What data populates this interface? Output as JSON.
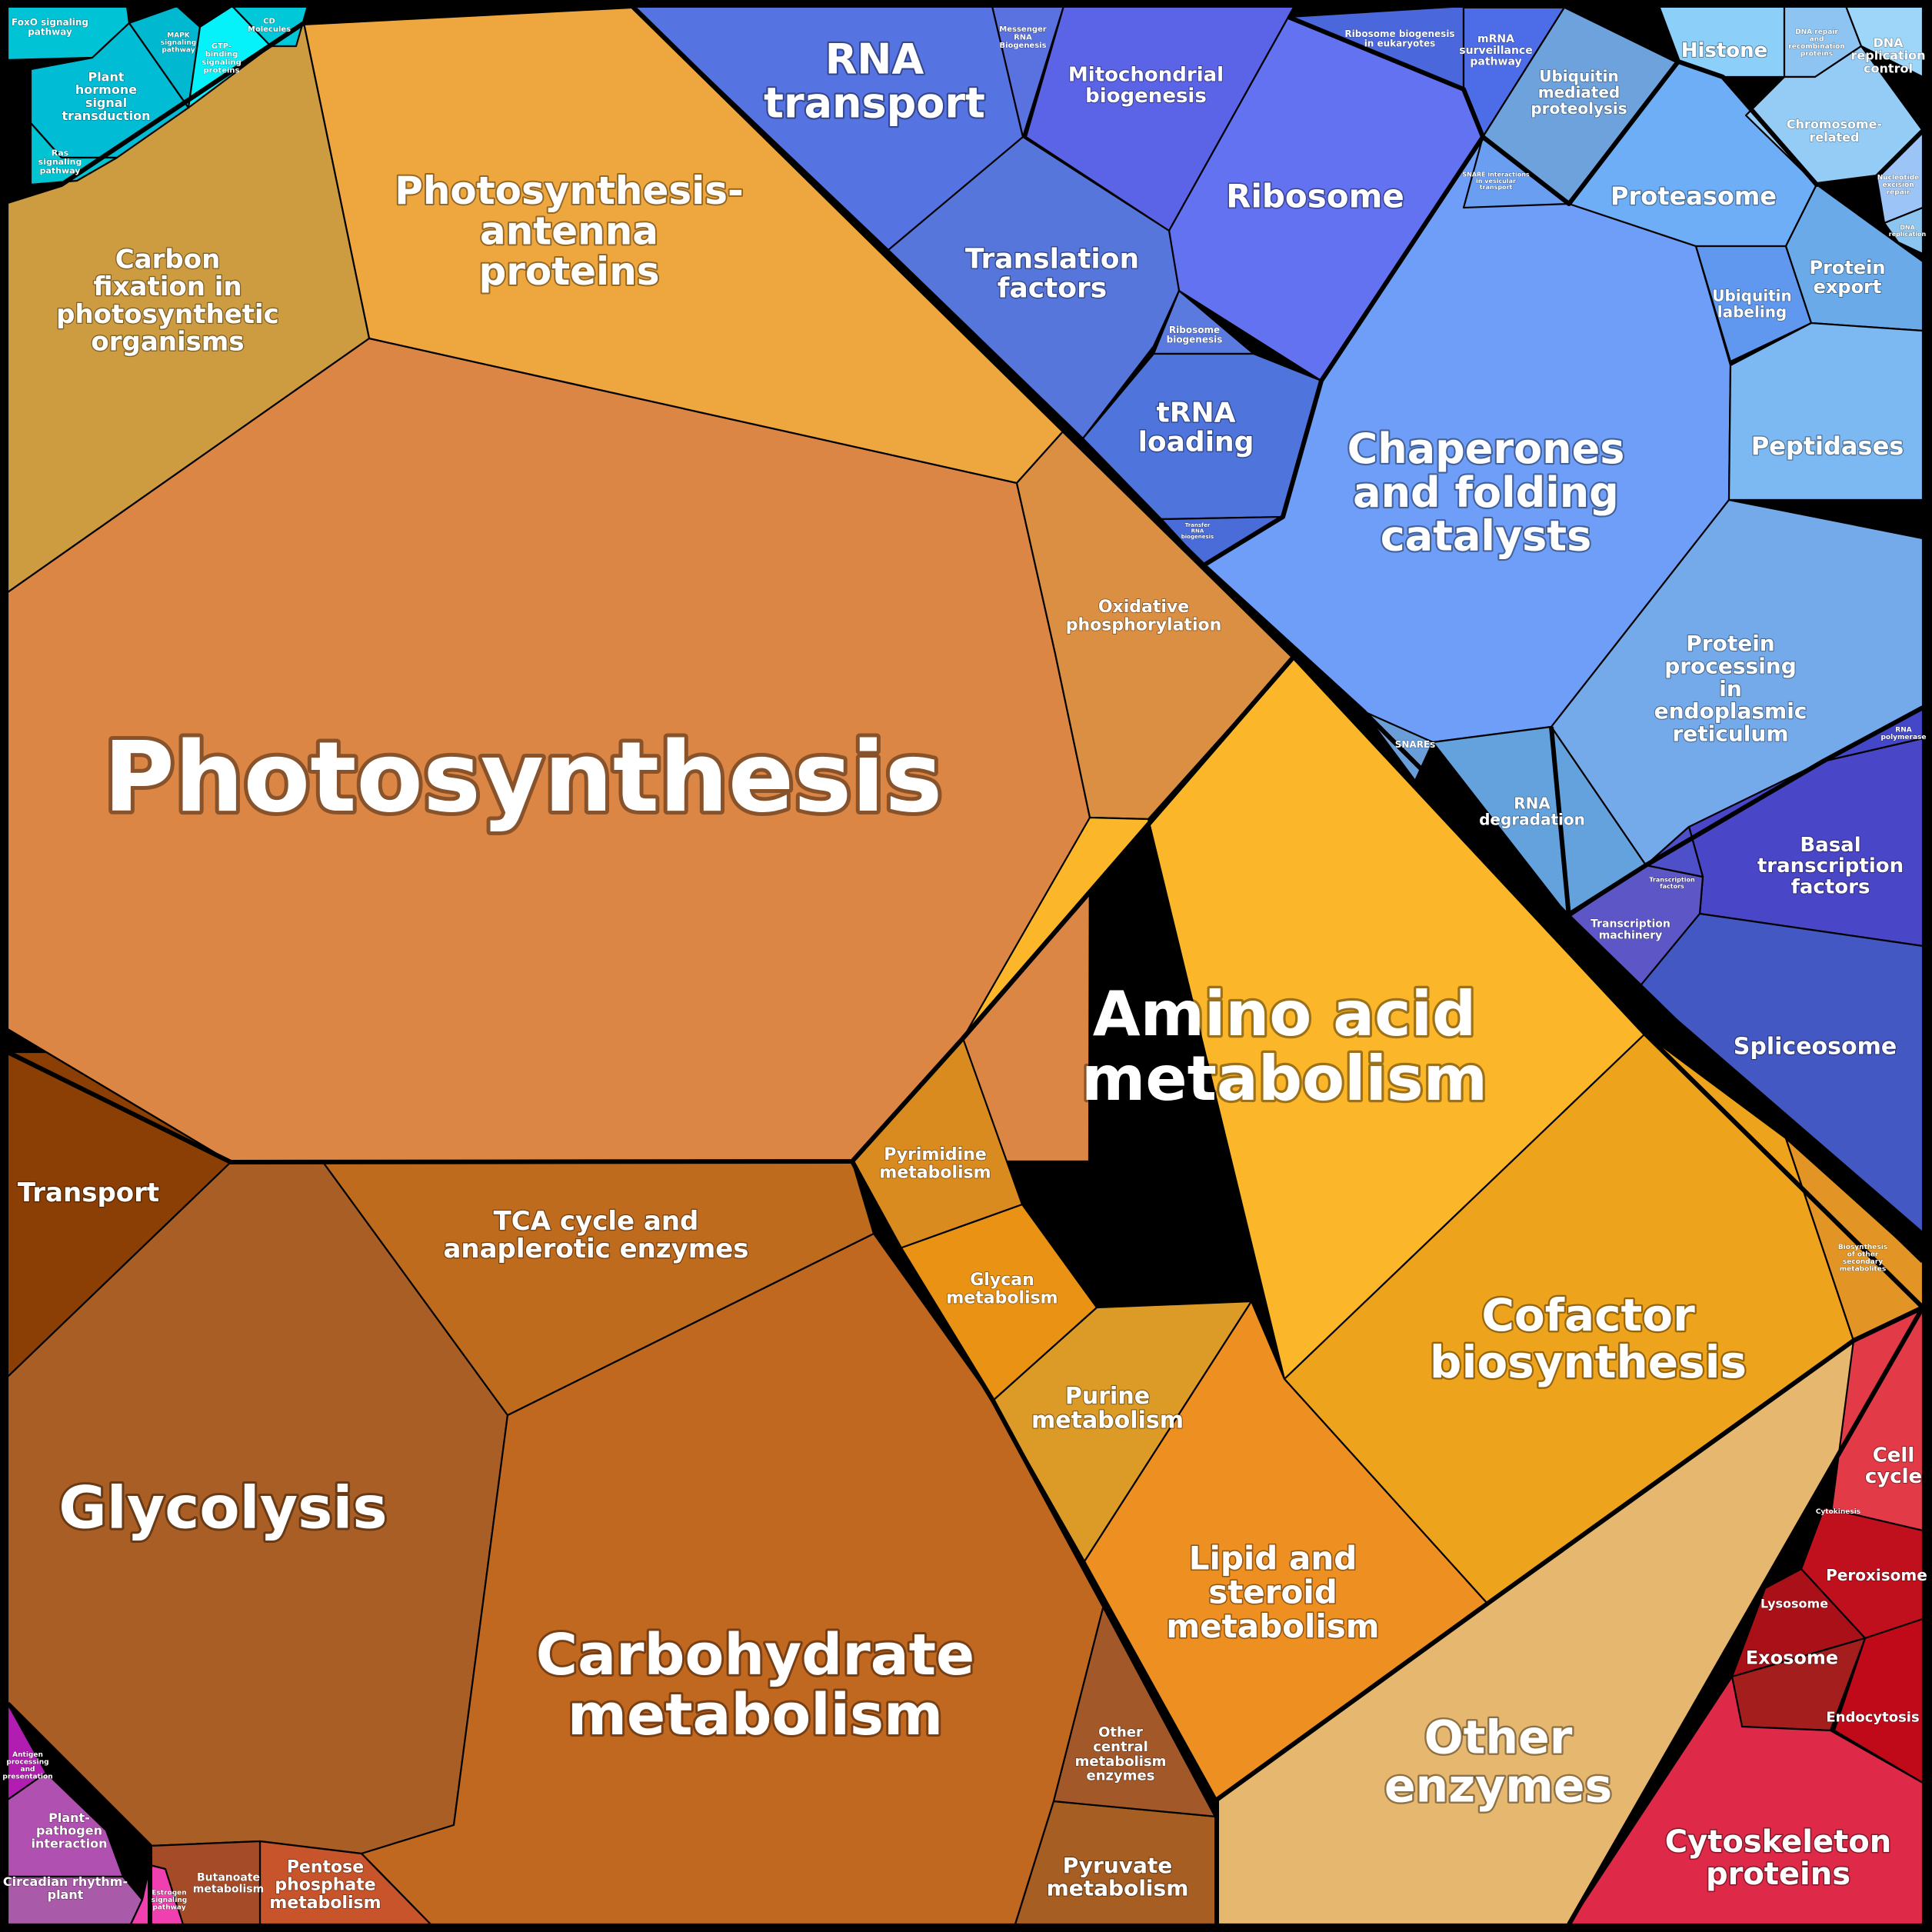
{
  "chart_data": {
    "type": "voronoi-treemap",
    "cells": [
      {
        "label": "Photosynthesis",
        "color": "#dc8645"
      },
      {
        "label": "Photosynthesis-\nantenna\nproteins",
        "color": "#eea63e"
      },
      {
        "label": "Carbon\nfixation in\nphotosynthetic\norganisms",
        "color": "#cd9b40"
      },
      {
        "label": "Oxidative\nphosphorylation",
        "color": "#da8f42"
      },
      {
        "label": "Glycolysis",
        "color": "#a85e24"
      },
      {
        "label": "Carbohydrate\nmetabolism",
        "color": "#c06720"
      },
      {
        "label": "TCA cycle and\nanaplerotic enzymes",
        "color": "#bf6b1e"
      },
      {
        "label": "Transport",
        "color": "#8c3f04"
      },
      {
        "label": "Pentose\nphosphate\nmetabolism",
        "color": "#c7542a"
      },
      {
        "label": "Butanoate\nmetabolism",
        "color": "#a64b28"
      },
      {
        "label": "Pyruvate\nmetabolism",
        "color": "#a75e23"
      },
      {
        "label": "Other\ncentral\nmetabolism\nenzymes",
        "color": "#a3582a"
      },
      {
        "label": "Amino acid\nmetabolism",
        "color": "#fcb629"
      },
      {
        "label": "Cofactor\nbiosynthesis",
        "color": "#eda31b"
      },
      {
        "label": "Lipid and\nsteroid\nmetabolism",
        "color": "#ee8f21"
      },
      {
        "label": "Purine\nmetabolism",
        "color": "#dc9a26"
      },
      {
        "label": "Glycan\nmetabolism",
        "color": "#ea9214"
      },
      {
        "label": "Pyrimidine\nmetabolism",
        "color": "#d98b20"
      },
      {
        "label": "Biosynthesis\nof other\nsecondary\nmetabolites",
        "color": "#e29525"
      },
      {
        "label": "Other\nenzymes",
        "color": "#e6b76e"
      },
      {
        "label": "RNA\ntransport",
        "color": "#5673e2"
      },
      {
        "label": "Messenger\nRNA\nBiogenesis",
        "color": "#5a71e0"
      },
      {
        "label": "Mitochondrial\nbiogenesis",
        "color": "#5b63e6"
      },
      {
        "label": "Ribosome",
        "color": "#6272f1"
      },
      {
        "label": "Translation\nfactors",
        "color": "#5676dc"
      },
      {
        "label": "Ribosome\nbiogenesis",
        "color": "#5a7ae0"
      },
      {
        "label": "tRNA\nloading",
        "color": "#4f74dc"
      },
      {
        "label": "Transfer\nRNA\nbiogenesis",
        "color": "#4a6cd8"
      },
      {
        "label": "Ribosome biogenesis\nin eukaryotes",
        "color": "#4a68dc"
      },
      {
        "label": "mRNA\nsurveillance\npathway",
        "color": "#4d6ce8"
      },
      {
        "label": "Chaperones\nand folding\ncatalysts",
        "color": "#6e9ef8"
      },
      {
        "label": "Ubiquitin\nmediated\nproteolysis",
        "color": "#6ea2dc"
      },
      {
        "label": "Proteasome",
        "color": "#6eaef6"
      },
      {
        "label": "Ubiquitin\nlabeling",
        "color": "#5f98ee"
      },
      {
        "label": "Protein\nexport",
        "color": "#6aaae8"
      },
      {
        "label": "Peptidases",
        "color": "#7cb8f2"
      },
      {
        "label": "Protein\nprocessing\nin\nendoplasmic\nreticulum",
        "color": "#74aaea"
      },
      {
        "label": "RNA\ndegradation",
        "color": "#64a2de"
      },
      {
        "label": "SNAREs",
        "color": "#6a9ed8"
      },
      {
        "label": "SNARE interactions\nin vesicular\ntransport",
        "color": "#6a9ef0"
      },
      {
        "label": "Histone",
        "color": "#8ccff9"
      },
      {
        "label": "DNA repair\nand\nrecombination\nproteins",
        "color": "#8ec4f2"
      },
      {
        "label": "DNA\nreplication\ncontrol",
        "color": "#9ed6fa"
      },
      {
        "label": "Chromosome-\nrelated",
        "color": "#94ccf6"
      },
      {
        "label": "Nucleotide\nexcision\nrepair",
        "color": "#9cc4f6"
      },
      {
        "label": "DNA\nreplication",
        "color": "#8cc6f0"
      },
      {
        "label": "Basal\ntranscription\nfactors",
        "color": "#4a46c8"
      },
      {
        "label": "Spliceosome",
        "color": "#4458c4"
      },
      {
        "label": "Transcription\nmachinery",
        "color": "#5c56c6"
      },
      {
        "label": "Transcription\nfactors",
        "color": "#4d50c8"
      },
      {
        "label": "RNA\npolymerase",
        "color": "#4448c8"
      },
      {
        "label": "Cell\ncycle",
        "color": "#e33a48"
      },
      {
        "label": "Cytokinesis",
        "color": "#ef3a56"
      },
      {
        "label": "Peroxisome",
        "color": "#c0101e"
      },
      {
        "label": "Lysosome",
        "color": "#aa1018"
      },
      {
        "label": "Exosome",
        "color": "#a51e1e"
      },
      {
        "label": "Endocytosis",
        "color": "#c00a1a"
      },
      {
        "label": "Cytoskeleton\nproteins",
        "color": "#de2a48"
      },
      {
        "label": "FoxO signaling\npathway",
        "color": "#00c3d6"
      },
      {
        "label": "Plant\nhormone\nsignal\ntransduction",
        "color": "#00bcd4"
      },
      {
        "label": "MAPK\nsignaling\npathway",
        "color": "#00b8d0"
      },
      {
        "label": "GTP-\nbinding\nsignaling\nproteins",
        "color": "#05f2fa"
      },
      {
        "label": "CD\nMolecules",
        "color": "#00c8d8"
      },
      {
        "label": "Ras\nsignaling\npathway",
        "color": "#00c4d2"
      },
      {
        "label": "Antigen\nprocessing\nand\npresentation",
        "color": "#b01db0"
      },
      {
        "label": "Plant-\npathogen\ninteraction",
        "color": "#b050b0"
      },
      {
        "label": "Circadian rhythm-\nplant",
        "color": "#a95aa8"
      },
      {
        "label": "Estrogen\nsignaling\npathway",
        "color": "#f040b0"
      }
    ]
  }
}
